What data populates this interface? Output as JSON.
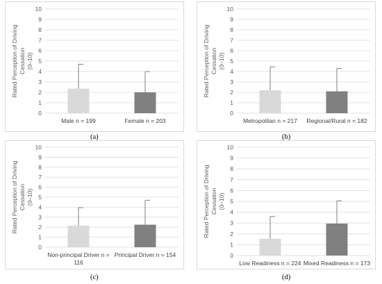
{
  "chart_data": [
    {
      "type": "bar",
      "panel_label": "(a)",
      "ylabel": "Rated Perception of Driving Cessation (0–10)",
      "ylabel_lines": [
        "Rated Perception of Driving",
        "Cessation",
        "(0–10)"
      ],
      "yticks": [
        "0",
        "1",
        "2",
        "3",
        "4",
        "5",
        "6",
        "7",
        "8",
        "9",
        "10"
      ],
      "ylim": [
        0,
        10
      ],
      "categories": [
        "Male n = 199",
        "Female n = 203"
      ],
      "category_lines": [
        [
          "Male n = 199"
        ],
        [
          "Female n = 203"
        ]
      ],
      "values": [
        2.35,
        2.0
      ],
      "error": [
        2.35,
        2.0
      ],
      "colors": [
        "#d9d9d9",
        "#808080"
      ],
      "grid": true
    },
    {
      "type": "bar",
      "panel_label": "(b)",
      "ylabel": "Rated Perception of Driving Cessation (0–10)",
      "ylabel_lines": [
        "Rated Perception of Driving",
        "Cessation",
        "(0–10)"
      ],
      "yticks": [
        "0",
        "1",
        "2",
        "3",
        "4",
        "5",
        "6",
        "7",
        "8",
        "9",
        "10"
      ],
      "ylim": [
        0,
        10
      ],
      "categories": [
        "Metropolitan n = 217",
        "Regional/Rural n = 182"
      ],
      "category_lines": [
        [
          "Metropolitan n = 217"
        ],
        [
          "Regional/Rural n = 182"
        ]
      ],
      "values": [
        2.2,
        2.1
      ],
      "error": [
        2.25,
        2.2
      ],
      "colors": [
        "#d9d9d9",
        "#808080"
      ],
      "grid": true
    },
    {
      "type": "bar",
      "panel_label": "(c)",
      "ylabel": "Rated Perception of Driving Cessation (0–10)",
      "ylabel_lines": [
        "Rated Perception of Driving",
        "Cessation",
        "(0–10)"
      ],
      "yticks": [
        "0",
        "1",
        "2",
        "3",
        "4",
        "5",
        "6",
        "7",
        "8",
        "9",
        "10"
      ],
      "ylim": [
        0,
        10
      ],
      "categories": [
        "Non-principal Driver n = 116",
        "Principal Driver n = 154"
      ],
      "category_lines": [
        [
          "Non-principal Driver n =",
          "116"
        ],
        [
          "Principal Driver n = 154"
        ]
      ],
      "values": [
        2.15,
        2.25
      ],
      "error": [
        1.8,
        2.45
      ],
      "colors": [
        "#d9d9d9",
        "#808080"
      ],
      "grid": true
    },
    {
      "type": "bar",
      "panel_label": "(d)",
      "ylabel": "Rated Perception of Driving Cessation (0–10)",
      "ylabel_lines": [
        "Rated Perception of Driving",
        "Cessation",
        "(0–10)"
      ],
      "yticks": [
        "0",
        "1",
        "2",
        "3",
        "4",
        "5",
        "6",
        "7",
        "8",
        "9",
        "10"
      ],
      "ylim": [
        0,
        10
      ],
      "categories": [
        "Low Readiness n = 224",
        "Mixed Readiness n = 173"
      ],
      "category_lines": [
        [
          "Low Readiness n = 224"
        ],
        [
          "Mixed Readiness n = 173"
        ]
      ],
      "values": [
        1.55,
        2.95
      ],
      "error": [
        2.05,
        2.1
      ],
      "colors": [
        "#d9d9d9",
        "#808080"
      ],
      "grid": true
    }
  ]
}
